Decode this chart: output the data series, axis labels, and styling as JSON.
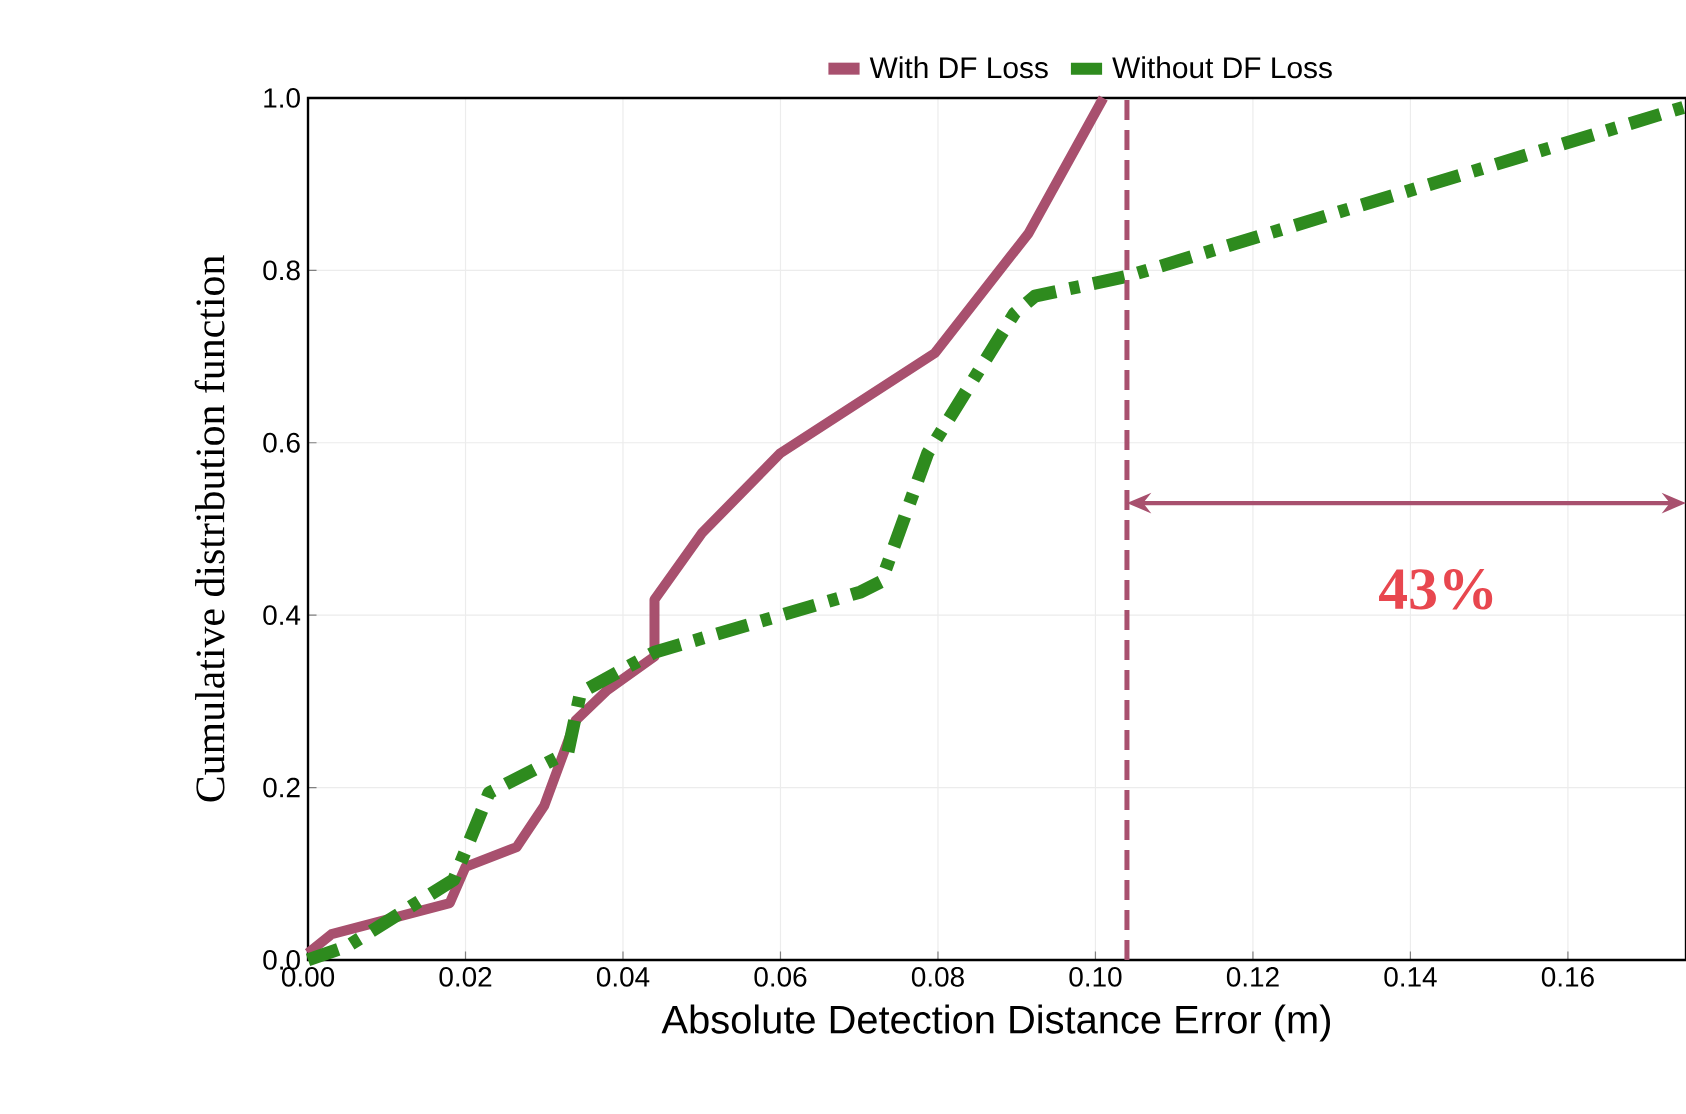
{
  "chart_data": {
    "type": "line",
    "xlabel": "Absolute Detection Distance Error (m)",
    "ylabel": "Cumulative distribution function",
    "xlim": [
      0,
      0.175
    ],
    "xticks": [
      {
        "value": 0,
        "label": "0.00"
      },
      {
        "value": 0.02,
        "label": "0.02"
      },
      {
        "value": 0.04,
        "label": "0.04"
      },
      {
        "value": 0.06,
        "label": "0.06"
      },
      {
        "value": 0.08,
        "label": "0.08"
      },
      {
        "value": 0.1,
        "label": "0.10"
      },
      {
        "value": 0.12,
        "label": "0.12"
      },
      {
        "value": 0.14,
        "label": "0.14"
      },
      {
        "value": 0.16,
        "label": "0.16"
      }
    ],
    "ylim": [
      0,
      1
    ],
    "yticks": [
      {
        "value": 0,
        "label": "0.0"
      },
      {
        "value": 0.2,
        "label": "0.2"
      },
      {
        "value": 0.4,
        "label": "0.4"
      },
      {
        "value": 0.6,
        "label": "0.6"
      },
      {
        "value": 0.8,
        "label": "0.8"
      },
      {
        "value": 1,
        "label": "1.0"
      }
    ],
    "grid": true,
    "legend": "top",
    "marker": "none",
    "series": [
      {
        "name": "With DF Loss",
        "color": "#a8506e",
        "line_style": "solid",
        "x": [
          0,
          0.003,
          0.018,
          0.02,
          0.0265,
          0.03,
          0.034,
          0.038,
          0.044,
          0.044,
          0.05,
          0.06,
          0.0796,
          0.0915,
          0.101
        ],
        "values": [
          0.008,
          0.03,
          0.066,
          0.108,
          0.131,
          0.179,
          0.278,
          0.313,
          0.352,
          0.418,
          0.495,
          0.588,
          0.704,
          0.843,
          1.0
        ]
      },
      {
        "name": "Without DF Loss",
        "color": "#2e8b1e",
        "line_style": "dashdot",
        "x": [
          0,
          0.005,
          0.0185,
          0.023,
          0.033,
          0.0346,
          0.044,
          0.0702,
          0.0728,
          0.0787,
          0.0897,
          0.0923,
          0.104,
          0.175
        ],
        "values": [
          0,
          0.016,
          0.093,
          0.194,
          0.241,
          0.31,
          0.357,
          0.427,
          0.439,
          0.588,
          0.75,
          0.77,
          0.793,
          0.99
        ]
      }
    ],
    "ref_lines": [
      {
        "axis": "x",
        "value": 0.104,
        "color": "#a8506e",
        "line_style": "dashed"
      }
    ],
    "annotations": [
      "43%"
    ]
  }
}
